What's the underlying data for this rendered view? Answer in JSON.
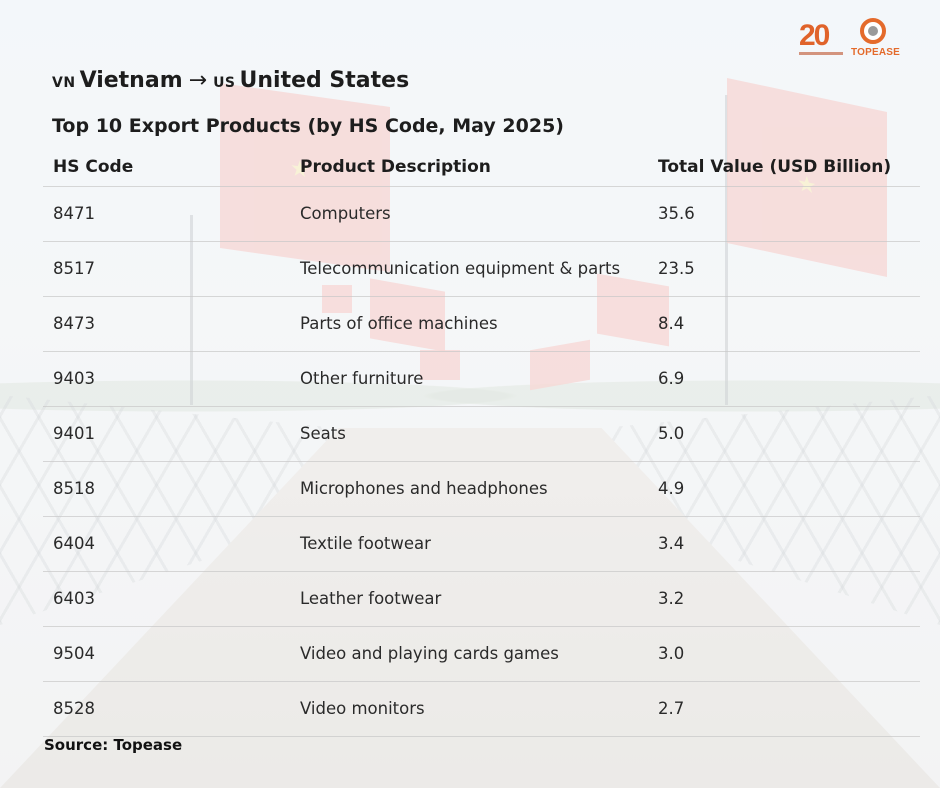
{
  "header": {
    "origin_code": "VN",
    "origin_name": "Vietnam",
    "arrow": "→",
    "dest_code": "US",
    "dest_name": "United States",
    "subtitle": "Top 10 Export Products (by HS Code, May 2025)"
  },
  "brand": {
    "anniversary_number": "20",
    "logo_text": "TOPEASE",
    "accent_color": "#e46a2b",
    "blue_color": "#1a6fb3"
  },
  "chart_data": {
    "type": "table",
    "columns": [
      "HS Code",
      "Product Description",
      "Total Value (USD Billion)"
    ],
    "rows": [
      [
        "8471",
        "Computers",
        "35.6"
      ],
      [
        "8517",
        "Telecommunication equipment & parts",
        "23.5"
      ],
      [
        "8473",
        "Parts of office machines",
        "8.4"
      ],
      [
        "9403",
        "Other furniture",
        "6.9"
      ],
      [
        "9401",
        "Seats",
        "5.0"
      ],
      [
        "8518",
        "Microphones and headphones",
        "4.9"
      ],
      [
        "6404",
        "Textile footwear",
        "3.4"
      ],
      [
        "6403",
        "Leather footwear",
        "3.2"
      ],
      [
        "9504",
        "Video and playing cards games",
        "3.0"
      ],
      [
        "8528",
        "Video monitors",
        "2.7"
      ]
    ]
  },
  "footer": {
    "source": "Source: Topease"
  }
}
